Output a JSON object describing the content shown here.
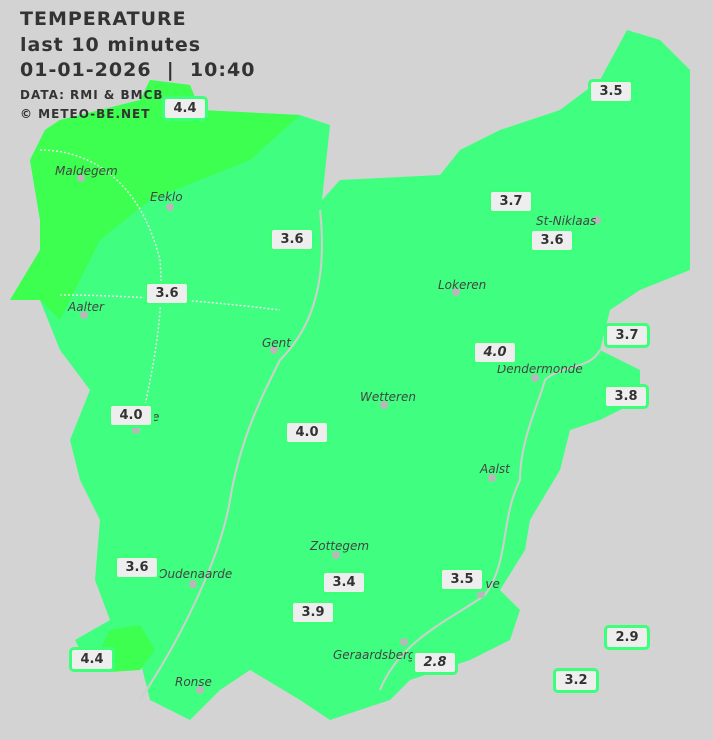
{
  "header": {
    "title": "TEMPERATURE",
    "period": "last 10 minutes",
    "datetime": "01-01-2026  |  10:40",
    "source": "DATA: RMI & BMCB",
    "copyright": "© METEO-BE.NET"
  },
  "colors": {
    "background": "#d3d3d3",
    "temp_3_4": "#40ff80",
    "temp_4_5": "#3cff50",
    "label_border": "#3cff7a"
  },
  "cities": [
    {
      "name": "Maldegem"
    },
    {
      "name": "Eeklo"
    },
    {
      "name": "Aalter"
    },
    {
      "name": "Gent"
    },
    {
      "name": "Lokeren"
    },
    {
      "name": "St-Niklaas"
    },
    {
      "name": "Dendermonde"
    },
    {
      "name": "Wetteren"
    },
    {
      "name": "Aalst"
    },
    {
      "name": "Zottegem"
    },
    {
      "name": "Oudenaarde"
    },
    {
      "name": "Geraardsberg"
    },
    {
      "name": "Ronse"
    },
    {
      "name": "ove"
    },
    {
      "name": "e"
    }
  ],
  "stations": [
    {
      "value": "4.4",
      "italic": false
    },
    {
      "value": "3.5",
      "italic": false
    },
    {
      "value": "3.7",
      "italic": false
    },
    {
      "value": "3.6",
      "italic": false
    },
    {
      "value": "3.6",
      "italic": false
    },
    {
      "value": "3.6",
      "italic": false
    },
    {
      "value": "3.7",
      "italic": false
    },
    {
      "value": "4.0",
      "italic": true
    },
    {
      "value": "3.8",
      "italic": false
    },
    {
      "value": "4.0",
      "italic": false
    },
    {
      "value": "4.0",
      "italic": false
    },
    {
      "value": "3.6",
      "italic": false
    },
    {
      "value": "3.4",
      "italic": false
    },
    {
      "value": "3.5",
      "italic": false
    },
    {
      "value": "3.9",
      "italic": false
    },
    {
      "value": "2.9",
      "italic": false
    },
    {
      "value": "4.4",
      "italic": false
    },
    {
      "value": "2.8",
      "italic": true
    },
    {
      "value": "3.2",
      "italic": false
    }
  ]
}
